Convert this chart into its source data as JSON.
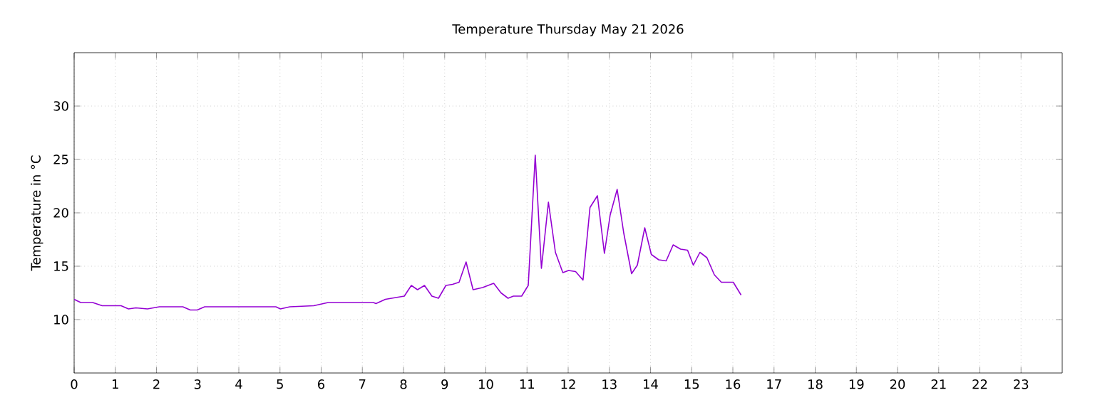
{
  "chart_data": {
    "type": "line",
    "title": "Temperature Thursday May 21 2026",
    "ylabel": "Temperature in °C",
    "x": [
      0,
      0.16,
      0.45,
      0.68,
      1.14,
      1.32,
      1.5,
      1.78,
      2.07,
      2.64,
      2.82,
      2.99,
      3.17,
      4.9,
      5.01,
      5.24,
      5.82,
      6.17,
      7.27,
      7.33,
      7.56,
      8.02,
      8.19,
      8.34,
      8.51,
      8.69,
      8.85,
      9.03,
      9.19,
      9.35,
      9.52,
      9.69,
      9.92,
      10.19,
      10.37,
      10.54,
      10.67,
      10.87,
      11.03,
      11.2,
      11.35,
      11.52,
      11.69,
      11.87,
      12.01,
      12.18,
      12.36,
      12.53,
      12.71,
      12.88,
      13.02,
      13.19,
      13.35,
      13.54,
      13.68,
      13.86,
      14.02,
      14.2,
      14.38,
      14.55,
      14.73,
      14.9,
      15.04,
      15.2,
      15.37,
      15.55,
      15.72,
      16.01,
      16.2
    ],
    "series": [
      {
        "color": "#9400d3",
        "values": [
          11.9,
          11.6,
          11.6,
          11.3,
          11.3,
          11.0,
          11.1,
          11.0,
          11.2,
          11.2,
          10.9,
          10.9,
          11.2,
          11.2,
          11.0,
          11.2,
          11.3,
          11.6,
          11.6,
          11.5,
          11.9,
          12.2,
          13.2,
          12.8,
          13.2,
          12.2,
          12.0,
          13.2,
          13.3,
          13.5,
          15.4,
          12.8,
          13.0,
          13.4,
          12.5,
          12.0,
          12.2,
          12.2,
          13.2,
          25.4,
          14.8,
          21.0,
          16.3,
          14.4,
          14.6,
          14.5,
          13.7,
          20.5,
          21.6,
          16.2,
          19.8,
          22.2,
          18.1,
          14.3,
          15.1,
          18.6,
          16.1,
          15.6,
          15.5,
          17.0,
          16.6,
          16.5,
          15.1,
          16.3,
          15.8,
          14.2,
          13.5,
          13.5,
          12.3
        ]
      }
    ],
    "xlim": [
      0,
      24
    ],
    "xticks": [
      0,
      1,
      2,
      3,
      4,
      5,
      6,
      7,
      8,
      9,
      10,
      11,
      12,
      13,
      14,
      15,
      16,
      17,
      18,
      19,
      20,
      21,
      22,
      23
    ],
    "ylim": [
      5,
      35
    ],
    "yticks": [
      10,
      15,
      20,
      25,
      30
    ],
    "grid": true,
    "marker": "none",
    "line_style": "solid"
  }
}
